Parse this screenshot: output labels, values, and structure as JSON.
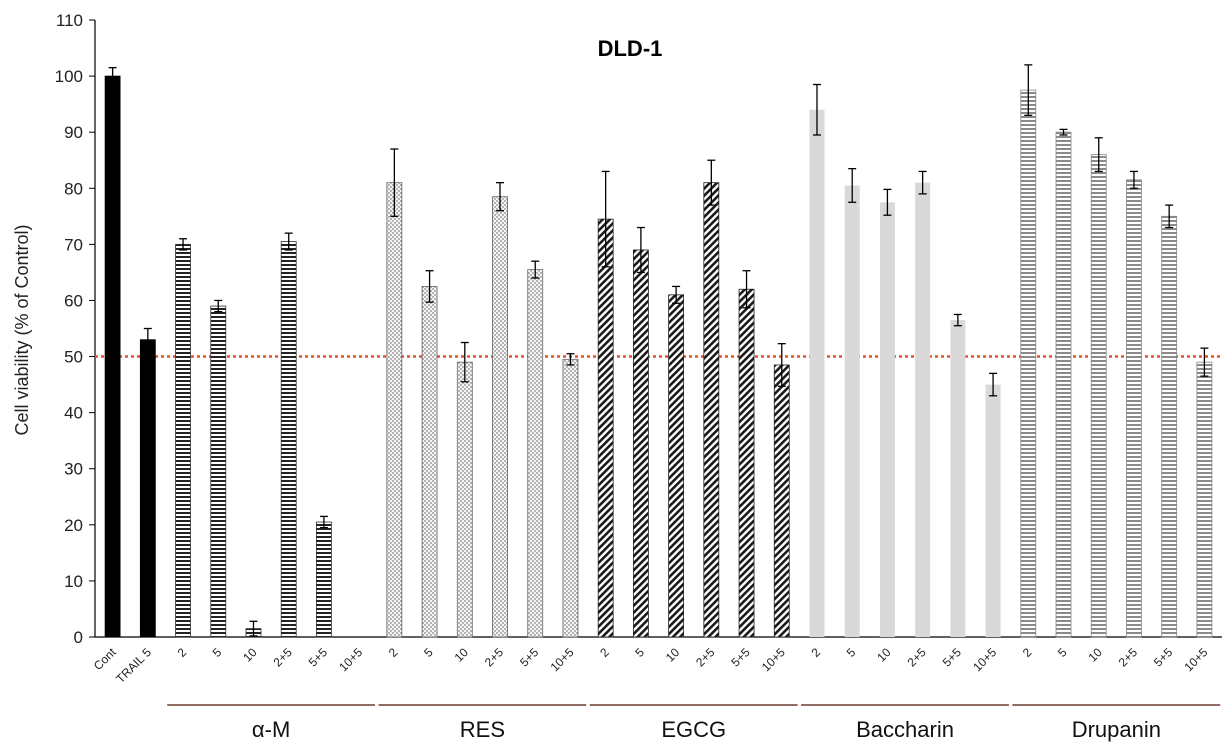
{
  "chart_data": {
    "type": "bar",
    "title": "DLD-1",
    "ylabel": "Cell viability (% of Control)",
    "xlabel": "",
    "ylim": [
      0,
      110
    ],
    "yticks": [
      0,
      10,
      20,
      30,
      40,
      50,
      60,
      70,
      80,
      90,
      100,
      110
    ],
    "grid": false,
    "reference_line": {
      "value": 50,
      "color": "#e8502a",
      "style": "dotted"
    },
    "categories": [
      "Cont",
      "TRAIL 5",
      "2",
      "5",
      "10",
      "2+5",
      "5+5",
      "10+5",
      "2",
      "5",
      "10",
      "2+5",
      "5+5",
      "10+5",
      "2",
      "5",
      "10",
      "2+5",
      "5+5",
      "10+5",
      "2",
      "5",
      "10",
      "2+5",
      "5+5",
      "10+5",
      "2",
      "5",
      "10",
      "2+5",
      "5+5",
      "10+5"
    ],
    "values": [
      100,
      53,
      70,
      59,
      1.5,
      70.5,
      20.5,
      null,
      81,
      62.5,
      49,
      78.5,
      65.5,
      49.5,
      74.5,
      69,
      61,
      81,
      62,
      48.5,
      94,
      80.5,
      77.5,
      81,
      56.5,
      45,
      97.5,
      90,
      86,
      81.5,
      75,
      49
    ],
    "errors": [
      1.5,
      2,
      1,
      1,
      1.3,
      1.5,
      1,
      null,
      6,
      2.8,
      3.5,
      2.5,
      1.5,
      1,
      8.5,
      4,
      1.5,
      4,
      3.3,
      3.8,
      4.5,
      3,
      2.3,
      2,
      1,
      2,
      4.5,
      0.5,
      3,
      1.5,
      2,
      2.5
    ],
    "groups": [
      {
        "label": "",
        "start": 0,
        "end": 1,
        "pattern": "solid"
      },
      {
        "label": "α-M",
        "start": 2,
        "end": 7,
        "pattern": "hlines"
      },
      {
        "label": "RES",
        "start": 8,
        "end": 13,
        "pattern": "dots"
      },
      {
        "label": "EGCG",
        "start": 14,
        "end": 19,
        "pattern": "diag"
      },
      {
        "label": "Baccharin",
        "start": 20,
        "end": 25,
        "pattern": "lightgray"
      },
      {
        "label": "Drupanin",
        "start": 26,
        "end": 31,
        "pattern": "grayhlines"
      }
    ],
    "colors": {
      "bar_solid": "#000000",
      "bar_light": "#d9d9d9",
      "underline": "#6b3b2e"
    }
  }
}
